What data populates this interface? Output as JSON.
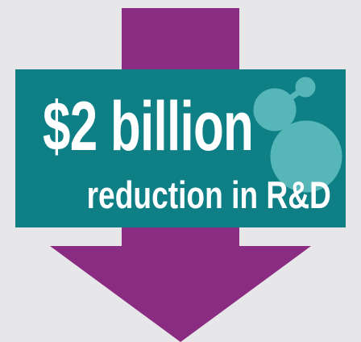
{
  "banner": {
    "headline": "$2 billion",
    "subline": "reduction in R&D"
  },
  "colors": {
    "background_panel": "#e7e7e9",
    "arrow_purple": "#8b2c83",
    "banner_teal": "#0f7f86",
    "molecule_light": "#57b6b8",
    "text": "#ffffff"
  },
  "icons": {
    "arrow": "down-arrow-icon",
    "molecule": "molecule-icon"
  }
}
